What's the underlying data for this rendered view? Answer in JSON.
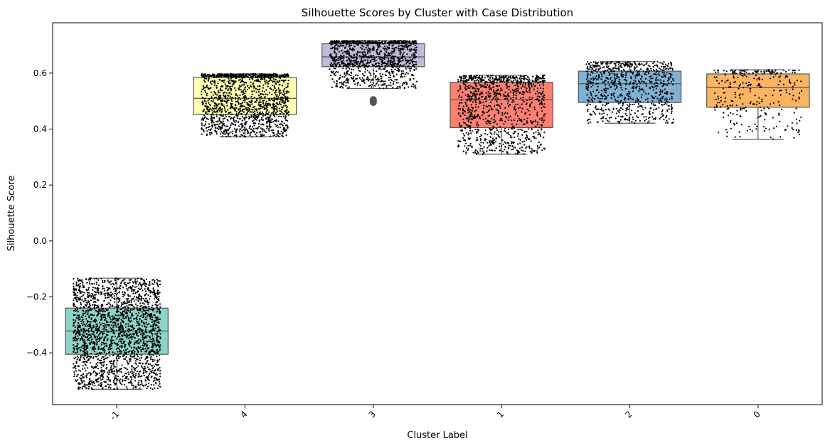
{
  "chart_data": {
    "type": "box",
    "title": "Silhouette Scores by Cluster with Case Distribution",
    "xlabel": "Cluster Label",
    "ylabel": "Silhouette Score",
    "ylim": [
      -0.585,
      0.78
    ],
    "yticks": [
      -0.4,
      -0.2,
      0.0,
      0.2,
      0.4,
      0.6
    ],
    "ytick_labels": [
      "−0.4",
      "−0.2",
      "0.0",
      "0.2",
      "0.4",
      "0.6"
    ],
    "grid": false,
    "categories": [
      "-1",
      "4",
      "3",
      "1",
      "2",
      "0"
    ],
    "boxes": [
      {
        "label": "-1",
        "color": "#8dd3c7",
        "whislo": -0.53,
        "q1": -0.405,
        "med": -0.322,
        "q3": -0.24,
        "whishi": -0.133,
        "n_points": 2200,
        "fliers": []
      },
      {
        "label": "4",
        "color": "#ffffb3",
        "whislo": 0.372,
        "q1": 0.452,
        "med": 0.51,
        "q3": 0.585,
        "whishi": 0.597,
        "n_points": 1500,
        "fliers": []
      },
      {
        "label": "3",
        "color": "#bebada",
        "whislo": 0.545,
        "q1": 0.623,
        "med": 0.658,
        "q3": 0.705,
        "whishi": 0.716,
        "n_points": 1200,
        "fliers": [
          0.5,
          0.495,
          0.505
        ]
      },
      {
        "label": "1",
        "color": "#fb8072",
        "whislo": 0.31,
        "q1": 0.405,
        "med": 0.505,
        "q3": 0.567,
        "whishi": 0.592,
        "n_points": 1100,
        "fliers": []
      },
      {
        "label": "2",
        "color": "#80b1d3",
        "whislo": 0.421,
        "q1": 0.495,
        "med": 0.562,
        "q3": 0.607,
        "whishi": 0.641,
        "n_points": 800,
        "fliers": []
      },
      {
        "label": "0",
        "color": "#fdb462",
        "whislo": 0.363,
        "q1": 0.478,
        "med": 0.548,
        "q3": 0.597,
        "whishi": 0.612,
        "n_points": 300,
        "fliers": []
      }
    ]
  }
}
